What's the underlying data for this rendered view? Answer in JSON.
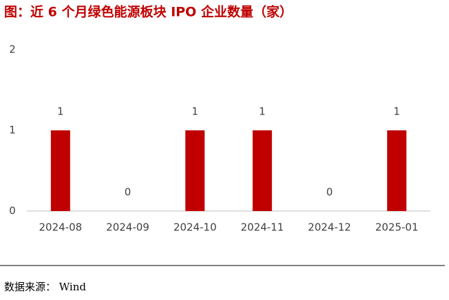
{
  "chart_data": {
    "type": "bar",
    "title": "图：近 6 个月绿色能源板块 IPO 企业数量（家）",
    "categories": [
      "2024-08",
      "2024-09",
      "2024-10",
      "2024-11",
      "2024-12",
      "2025-01"
    ],
    "values": [
      1,
      0,
      1,
      1,
      0,
      1
    ],
    "color": "#c00000",
    "ylim": [
      0,
      2
    ],
    "yticks": [
      0,
      1,
      2
    ],
    "grid": false,
    "source": "数据来源：  Wind"
  }
}
